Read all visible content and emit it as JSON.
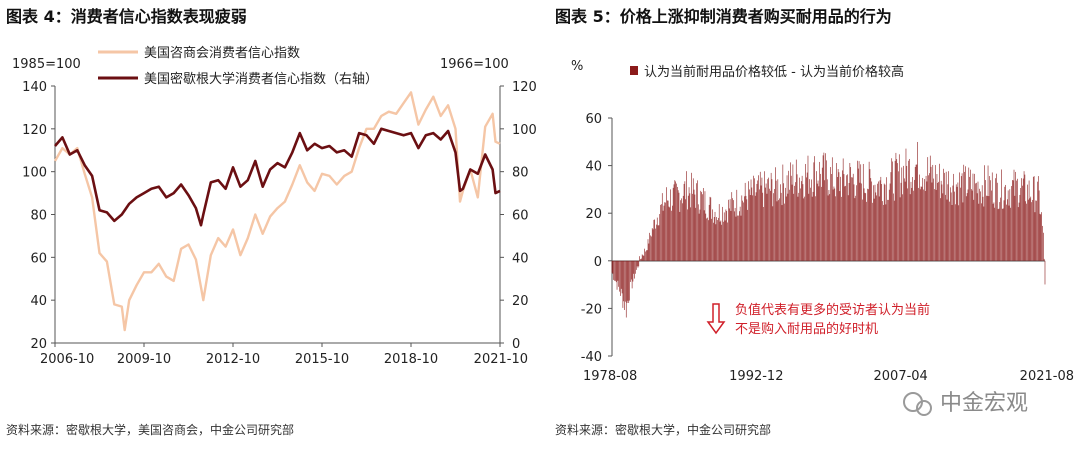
{
  "chart_data": [
    {
      "type": "line",
      "title": "图表 4：消费者信心指数表现疲弱",
      "left_unit": "1985=100",
      "right_unit": "1966=100",
      "x_tick_labels": [
        "2006-10",
        "2009-10",
        "2012-10",
        "2015-10",
        "2018-10",
        "2021-10"
      ],
      "x_range": [
        2006.75,
        2021.75
      ],
      "y_left_ticks": [
        20,
        40,
        60,
        80,
        100,
        120,
        140
      ],
      "y_left_range": [
        20,
        140
      ],
      "y_right_ticks": [
        0,
        20,
        40,
        60,
        80,
        100,
        120
      ],
      "y_right_range": [
        0,
        120
      ],
      "legend_position": "top-center",
      "grid": false,
      "series": [
        {
          "name": "美国咨商会消费者信心指数",
          "axis": "left",
          "color": "#f5c6a6",
          "x": [
            2006.75,
            2007.0,
            2007.25,
            2007.5,
            2007.75,
            2008.0,
            2008.25,
            2008.5,
            2008.75,
            2009.0,
            2009.1,
            2009.25,
            2009.5,
            2009.75,
            2010.0,
            2010.25,
            2010.5,
            2010.75,
            2011.0,
            2011.25,
            2011.5,
            2011.67,
            2011.75,
            2012.0,
            2012.25,
            2012.5,
            2012.75,
            2013.0,
            2013.25,
            2013.5,
            2013.75,
            2014.0,
            2014.25,
            2014.5,
            2014.75,
            2015.0,
            2015.25,
            2015.5,
            2015.75,
            2016.0,
            2016.25,
            2016.5,
            2016.75,
            2017.0,
            2017.25,
            2017.5,
            2017.75,
            2018.0,
            2018.25,
            2018.5,
            2018.75,
            2019.0,
            2019.25,
            2019.5,
            2019.75,
            2020.0,
            2020.25,
            2020.4,
            2020.5,
            2020.75,
            2021.0,
            2021.25,
            2021.5,
            2021.6,
            2021.75
          ],
          "values": [
            105,
            111,
            108,
            111,
            99,
            88,
            62,
            58,
            38,
            37,
            26,
            40,
            47,
            53,
            53,
            57,
            51,
            49,
            64,
            66,
            59,
            46,
            40,
            61,
            69,
            65,
            73,
            61,
            69,
            80,
            71,
            79,
            83,
            86,
            94,
            103,
            95,
            91,
            99,
            98,
            94,
            98,
            100,
            111,
            120,
            120,
            126,
            128,
            127,
            132,
            137,
            122,
            129,
            135,
            126,
            131,
            120,
            86,
            91,
            101,
            88,
            121,
            127,
            114,
            113
          ]
        },
        {
          "name": "美国密歇根大学消费者信心指数（右轴）",
          "axis": "right",
          "color": "#6b0f12",
          "x": [
            2006.75,
            2007.0,
            2007.25,
            2007.5,
            2007.75,
            2008.0,
            2008.25,
            2008.5,
            2008.75,
            2009.0,
            2009.25,
            2009.5,
            2009.75,
            2010.0,
            2010.25,
            2010.5,
            2010.75,
            2011.0,
            2011.25,
            2011.5,
            2011.67,
            2011.75,
            2012.0,
            2012.25,
            2012.5,
            2012.75,
            2013.0,
            2013.25,
            2013.5,
            2013.75,
            2014.0,
            2014.25,
            2014.5,
            2014.75,
            2015.0,
            2015.25,
            2015.5,
            2015.75,
            2016.0,
            2016.25,
            2016.5,
            2016.75,
            2017.0,
            2017.25,
            2017.5,
            2017.75,
            2018.0,
            2018.25,
            2018.5,
            2018.75,
            2019.0,
            2019.25,
            2019.5,
            2019.75,
            2020.0,
            2020.25,
            2020.4,
            2020.5,
            2020.75,
            2021.0,
            2021.25,
            2021.5,
            2021.6,
            2021.75
          ],
          "values": [
            92,
            96,
            88,
            90,
            83,
            78,
            62,
            61,
            57,
            60,
            65,
            68,
            70,
            72,
            73,
            68,
            70,
            74,
            69,
            63,
            55,
            60,
            75,
            76,
            72,
            82,
            73,
            76,
            85,
            73,
            81,
            84,
            82,
            89,
            98,
            90,
            93,
            91,
            92,
            89,
            90,
            87,
            98,
            97,
            93,
            100,
            99,
            98,
            97,
            98,
            91,
            97,
            98,
            95,
            99,
            89,
            71,
            72,
            81,
            79,
            88,
            81,
            70,
            71
          ]
        }
      ],
      "source": "资料来源：密歇根大学，美国咨商会，中金公司研究部"
    },
    {
      "type": "bar",
      "title": "图表 5：价格上涨抑制消费者购买耐用品的行为",
      "y_unit": "%",
      "x_tick_labels": [
        "1978-08",
        "1992-12",
        "2007-04",
        "2021-08"
      ],
      "x_range": [
        1978.583,
        2021.667
      ],
      "y_ticks": [
        -40,
        -20,
        0,
        20,
        40,
        60
      ],
      "y_range": [
        -40,
        60
      ],
      "legend_position": "top-right",
      "grid": false,
      "series": [
        {
          "name": "认为当前耐用品价格较低 - 认为当前价格较高",
          "color": "#8b1a1a",
          "x": [
            1978.6,
            1979.5,
            1980.0,
            1980.4,
            1981.0,
            1981.5,
            1982.0,
            1982.5,
            1983.0,
            1983.5,
            1984.0,
            1985.0,
            1986.0,
            1987.0,
            1988.0,
            1989.0,
            1990.0,
            1990.8,
            1991.5,
            1992.0,
            1993.0,
            1994.0,
            1995.0,
            1996.0,
            1997.0,
            1998.0,
            1999.0,
            2000.0,
            2001.0,
            2002.0,
            2003.0,
            2004.0,
            2005.0,
            2006.0,
            2007.0,
            2008.0,
            2009.0,
            2010.0,
            2011.0,
            2012.0,
            2013.0,
            2014.0,
            2015.0,
            2016.0,
            2017.0,
            2018.0,
            2019.0,
            2020.0,
            2021.0,
            2021.3,
            2021.5,
            2021.667
          ],
          "values": [
            -5,
            -14,
            -20,
            -12,
            -4,
            2,
            5,
            12,
            18,
            22,
            26,
            27,
            30,
            28,
            24,
            20,
            22,
            24,
            26,
            27,
            29,
            30,
            31,
            33,
            35,
            36,
            37,
            36,
            33,
            35,
            34,
            33,
            32,
            33,
            36,
            38,
            40,
            37,
            34,
            33,
            32,
            32,
            31,
            32,
            30,
            30,
            31,
            29,
            28,
            20,
            10,
            -9
          ]
        }
      ],
      "annotation": "负值代表有更多的受访者认为当前不是购入耐用品的好时机",
      "source": "资料来源：密歇根大学，中金公司研究部"
    }
  ],
  "watermark": "中金宏观"
}
